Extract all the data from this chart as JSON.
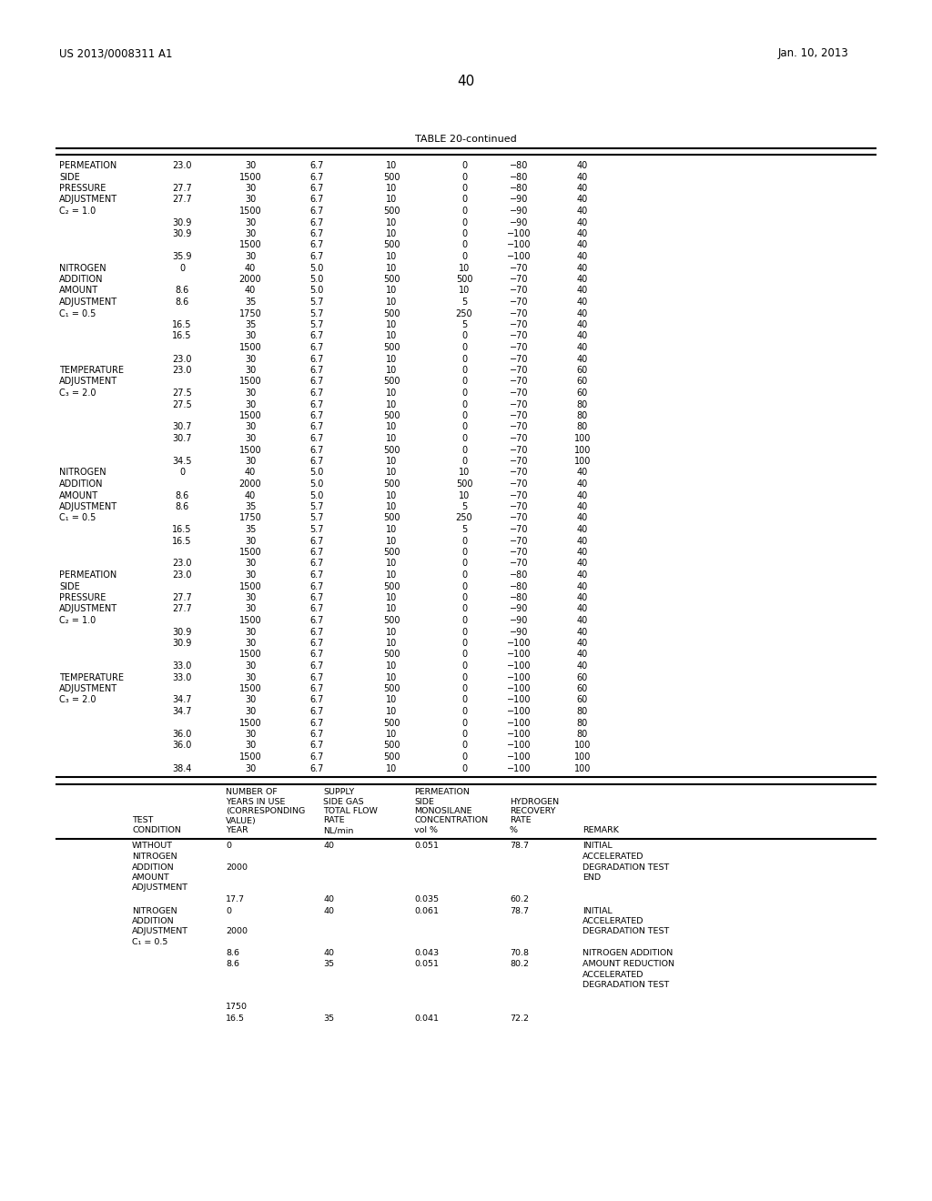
{
  "patent_number": "US 2013/0008311 A1",
  "date": "Jan. 10, 2013",
  "page_number": "40",
  "table_title": "TABLE 20-continued",
  "bg": "#ffffff",
  "fg": "#000000",
  "upper_rows": [
    [
      "PERMEATION",
      "23.0",
      "30",
      "6.7",
      "10",
      "0",
      "−80",
      "40"
    ],
    [
      "SIDE",
      "",
      "1500",
      "6.7",
      "500",
      "0",
      "−80",
      "40"
    ],
    [
      "PRESSURE",
      "27.7",
      "30",
      "6.7",
      "10",
      "0",
      "−80",
      "40"
    ],
    [
      "ADJUSTMENT",
      "27.7",
      "30",
      "6.7",
      "10",
      "0",
      "−90",
      "40"
    ],
    [
      "C₂ = 1.0",
      "",
      "1500",
      "6.7",
      "500",
      "0",
      "−90",
      "40"
    ],
    [
      "",
      "30.9",
      "30",
      "6.7",
      "10",
      "0",
      "−90",
      "40"
    ],
    [
      "",
      "30.9",
      "30",
      "6.7",
      "10",
      "0",
      "−100",
      "40"
    ],
    [
      "",
      "",
      "1500",
      "6.7",
      "500",
      "0",
      "−100",
      "40"
    ],
    [
      "",
      "35.9",
      "30",
      "6.7",
      "10",
      "0",
      "−100",
      "40"
    ],
    [
      "NITROGEN",
      "0",
      "40",
      "5.0",
      "10",
      "10",
      "−70",
      "40"
    ],
    [
      "ADDITION",
      "",
      "2000",
      "5.0",
      "500",
      "500",
      "−70",
      "40"
    ],
    [
      "AMOUNT",
      "8.6",
      "40",
      "5.0",
      "10",
      "10",
      "−70",
      "40"
    ],
    [
      "ADJUSTMENT",
      "8.6",
      "35",
      "5.7",
      "10",
      "5",
      "−70",
      "40"
    ],
    [
      "C₁ = 0.5",
      "",
      "1750",
      "5.7",
      "500",
      "250",
      "−70",
      "40"
    ],
    [
      "",
      "16.5",
      "35",
      "5.7",
      "10",
      "5",
      "−70",
      "40"
    ],
    [
      "",
      "16.5",
      "30",
      "6.7",
      "10",
      "0",
      "−70",
      "40"
    ],
    [
      "",
      "",
      "1500",
      "6.7",
      "500",
      "0",
      "−70",
      "40"
    ],
    [
      "",
      "23.0",
      "30",
      "6.7",
      "10",
      "0",
      "−70",
      "40"
    ],
    [
      "TEMPERATURE",
      "23.0",
      "30",
      "6.7",
      "10",
      "0",
      "−70",
      "60"
    ],
    [
      "ADJUSTMENT",
      "",
      "1500",
      "6.7",
      "500",
      "0",
      "−70",
      "60"
    ],
    [
      "C₃ = 2.0",
      "27.5",
      "30",
      "6.7",
      "10",
      "0",
      "−70",
      "60"
    ],
    [
      "",
      "27.5",
      "30",
      "6.7",
      "10",
      "0",
      "−70",
      "80"
    ],
    [
      "",
      "",
      "1500",
      "6.7",
      "500",
      "0",
      "−70",
      "80"
    ],
    [
      "",
      "30.7",
      "30",
      "6.7",
      "10",
      "0",
      "−70",
      "80"
    ],
    [
      "",
      "30.7",
      "30",
      "6.7",
      "10",
      "0",
      "−70",
      "100"
    ],
    [
      "",
      "",
      "1500",
      "6.7",
      "500",
      "0",
      "−70",
      "100"
    ],
    [
      "",
      "34.5",
      "30",
      "6.7",
      "10",
      "0",
      "−70",
      "100"
    ],
    [
      "NITROGEN",
      "0",
      "40",
      "5.0",
      "10",
      "10",
      "−70",
      "40"
    ],
    [
      "ADDITION",
      "",
      "2000",
      "5.0",
      "500",
      "500",
      "−70",
      "40"
    ],
    [
      "AMOUNT",
      "8.6",
      "40",
      "5.0",
      "10",
      "10",
      "−70",
      "40"
    ],
    [
      "ADJUSTMENT",
      "8.6",
      "35",
      "5.7",
      "10",
      "5",
      "−70",
      "40"
    ],
    [
      "C₁ = 0.5",
      "",
      "1750",
      "5.7",
      "500",
      "250",
      "−70",
      "40"
    ],
    [
      "",
      "16.5",
      "35",
      "5.7",
      "10",
      "5",
      "−70",
      "40"
    ],
    [
      "",
      "16.5",
      "30",
      "6.7",
      "10",
      "0",
      "−70",
      "40"
    ],
    [
      "",
      "",
      "1500",
      "6.7",
      "500",
      "0",
      "−70",
      "40"
    ],
    [
      "",
      "23.0",
      "30",
      "6.7",
      "10",
      "0",
      "−70",
      "40"
    ],
    [
      "PERMEATION",
      "23.0",
      "30",
      "6.7",
      "10",
      "0",
      "−80",
      "40"
    ],
    [
      "SIDE",
      "",
      "1500",
      "6.7",
      "500",
      "0",
      "−80",
      "40"
    ],
    [
      "PRESSURE",
      "27.7",
      "30",
      "6.7",
      "10",
      "0",
      "−80",
      "40"
    ],
    [
      "ADJUSTMENT",
      "27.7",
      "30",
      "6.7",
      "10",
      "0",
      "−90",
      "40"
    ],
    [
      "C₂ = 1.0",
      "",
      "1500",
      "6.7",
      "500",
      "0",
      "−90",
      "40"
    ],
    [
      "",
      "30.9",
      "30",
      "6.7",
      "10",
      "0",
      "−90",
      "40"
    ],
    [
      "",
      "30.9",
      "30",
      "6.7",
      "10",
      "0",
      "−100",
      "40"
    ],
    [
      "",
      "",
      "1500",
      "6.7",
      "500",
      "0",
      "−100",
      "40"
    ],
    [
      "",
      "33.0",
      "30",
      "6.7",
      "10",
      "0",
      "−100",
      "40"
    ],
    [
      "TEMPERATURE",
      "33.0",
      "30",
      "6.7",
      "10",
      "0",
      "−100",
      "60"
    ],
    [
      "ADJUSTMENT",
      "",
      "1500",
      "6.7",
      "500",
      "0",
      "−100",
      "60"
    ],
    [
      "C₃ = 2.0",
      "34.7",
      "30",
      "6.7",
      "10",
      "0",
      "−100",
      "60"
    ],
    [
      "",
      "34.7",
      "30",
      "6.7",
      "10",
      "0",
      "−100",
      "80"
    ],
    [
      "",
      "",
      "1500",
      "6.7",
      "500",
      "0",
      "−100",
      "80"
    ],
    [
      "",
      "36.0",
      "30",
      "6.7",
      "10",
      "0",
      "−100",
      "80"
    ],
    [
      "",
      "36.0",
      "30",
      "6.7",
      "500",
      "0",
      "−100",
      "100"
    ],
    [
      "",
      "",
      "1500",
      "6.7",
      "500",
      "0",
      "−100",
      "100"
    ],
    [
      "",
      "38.4",
      "30",
      "6.7",
      "10",
      "0",
      "−100",
      "100"
    ]
  ],
  "lower_rows": [
    {
      "c0": [
        "WITHOUT",
        "NITROGEN",
        "ADDITION",
        "AMOUNT",
        "ADJUSTMENT"
      ],
      "c1": [
        "0",
        "",
        "2000"
      ],
      "c2": [
        "40"
      ],
      "c3": [
        "0.051"
      ],
      "c4": [
        "78.7"
      ],
      "c5": [
        "INITIAL",
        "ACCELERATED",
        "DEGRADATION TEST",
        "END"
      ]
    },
    {
      "c0": [],
      "c1": [
        "17.7"
      ],
      "c2": [
        "40"
      ],
      "c3": [
        "0.035"
      ],
      "c4": [
        "60.2"
      ],
      "c5": []
    },
    {
      "c0": [
        "NITROGEN",
        "ADDITION",
        "ADJUSTMENT",
        "C₁ = 0.5"
      ],
      "c1": [
        "0",
        "",
        "2000"
      ],
      "c2": [
        "40"
      ],
      "c3": [
        "0.061"
      ],
      "c4": [
        "78.7"
      ],
      "c5": [
        "INITIAL",
        "ACCELERATED",
        "DEGRADATION TEST"
      ]
    },
    {
      "c0": [],
      "c1": [
        "8.6",
        "8.6"
      ],
      "c2": [
        "40",
        "35"
      ],
      "c3": [
        "0.043",
        "0.051"
      ],
      "c4": [
        "70.8",
        "80.2"
      ],
      "c5": [
        "NITROGEN ADDITION",
        "AMOUNT REDUCTION",
        "ACCELERATED",
        "DEGRADATION TEST"
      ]
    },
    {
      "c0": [],
      "c1": [
        "",
        "1750"
      ],
      "c2": [],
      "c3": [],
      "c4": [],
      "c5": []
    },
    {
      "c0": [],
      "c1": [
        "16.5"
      ],
      "c2": [
        "35"
      ],
      "c3": [
        "0.041"
      ],
      "c4": [
        "72.2"
      ],
      "c5": []
    }
  ]
}
